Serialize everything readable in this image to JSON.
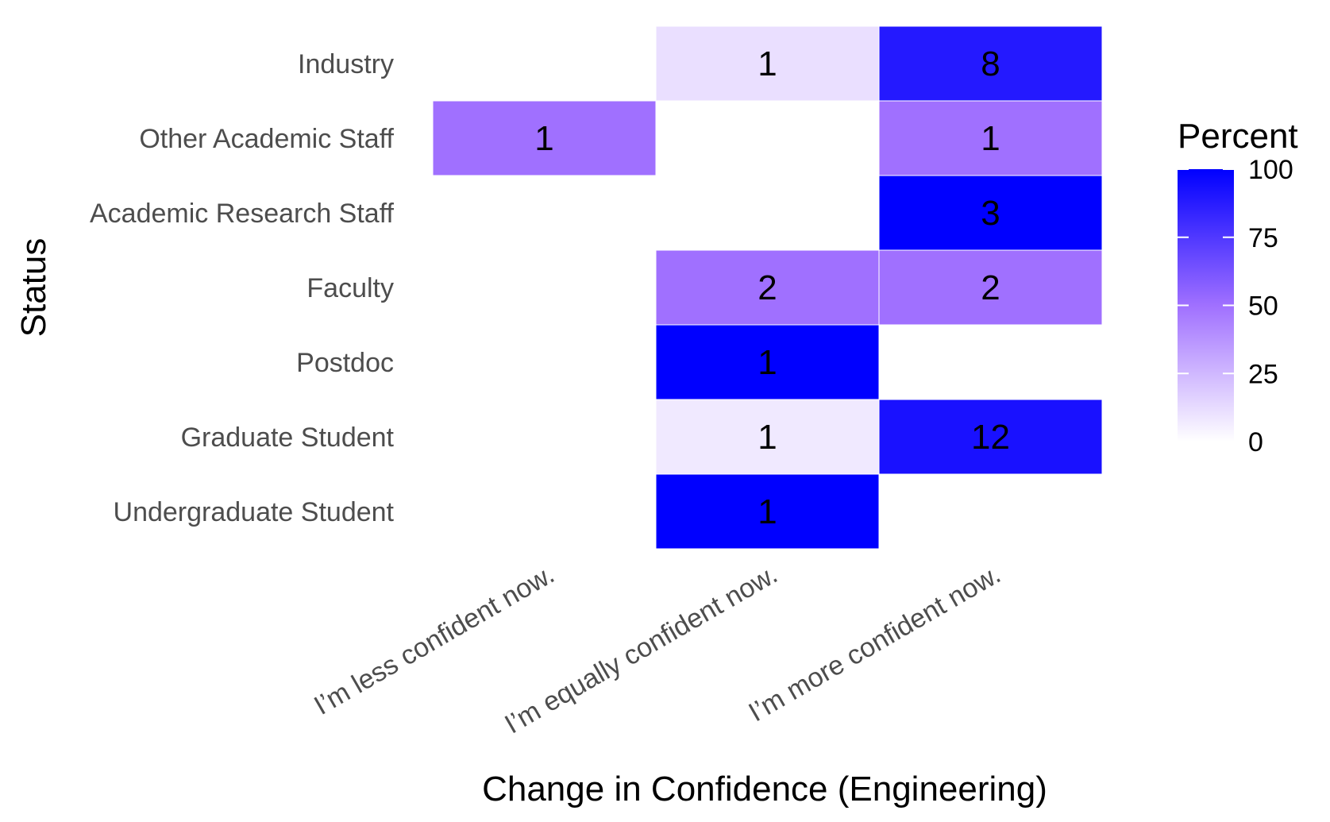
{
  "chart_data": {
    "type": "heatmap",
    "xlabel": "Change in Confidence (Engineering)",
    "ylabel": "Status",
    "x_categories": [
      "I’m less confident now.",
      "I’m equally confident now.",
      "I’m more confident now."
    ],
    "y_categories": [
      "Industry",
      "Other Academic Staff",
      "Academic Research Staff",
      "Faculty",
      "Postdoc",
      "Graduate Student",
      "Undergraduate Student"
    ],
    "cells": [
      {
        "x": "I’m equally confident now.",
        "y": "Industry",
        "count": 1,
        "percent": 11.1
      },
      {
        "x": "I’m more confident now.",
        "y": "Industry",
        "count": 8,
        "percent": 88.9
      },
      {
        "x": "I’m less confident now.",
        "y": "Other Academic Staff",
        "count": 1,
        "percent": 50
      },
      {
        "x": "I’m more confident now.",
        "y": "Other Academic Staff",
        "count": 1,
        "percent": 50
      },
      {
        "x": "I’m more confident now.",
        "y": "Academic Research Staff",
        "count": 3,
        "percent": 100
      },
      {
        "x": "I’m equally confident now.",
        "y": "Faculty",
        "count": 2,
        "percent": 50
      },
      {
        "x": "I’m more confident now.",
        "y": "Faculty",
        "count": 2,
        "percent": 50
      },
      {
        "x": "I’m equally confident now.",
        "y": "Postdoc",
        "count": 1,
        "percent": 100
      },
      {
        "x": "I’m equally confident now.",
        "y": "Graduate Student",
        "count": 1,
        "percent": 7.7
      },
      {
        "x": "I’m more confident now.",
        "y": "Graduate Student",
        "count": 12,
        "percent": 92.3
      },
      {
        "x": "I’m equally confident now.",
        "y": "Undergraduate Student",
        "count": 1,
        "percent": 100
      }
    ],
    "legend": {
      "title": "Percent",
      "placement": "right",
      "ticks": [
        0,
        25,
        50,
        75,
        100
      ],
      "low_color": "#ffffff",
      "mid_color": "#a070ff",
      "high_color": "#0000ff"
    }
  }
}
